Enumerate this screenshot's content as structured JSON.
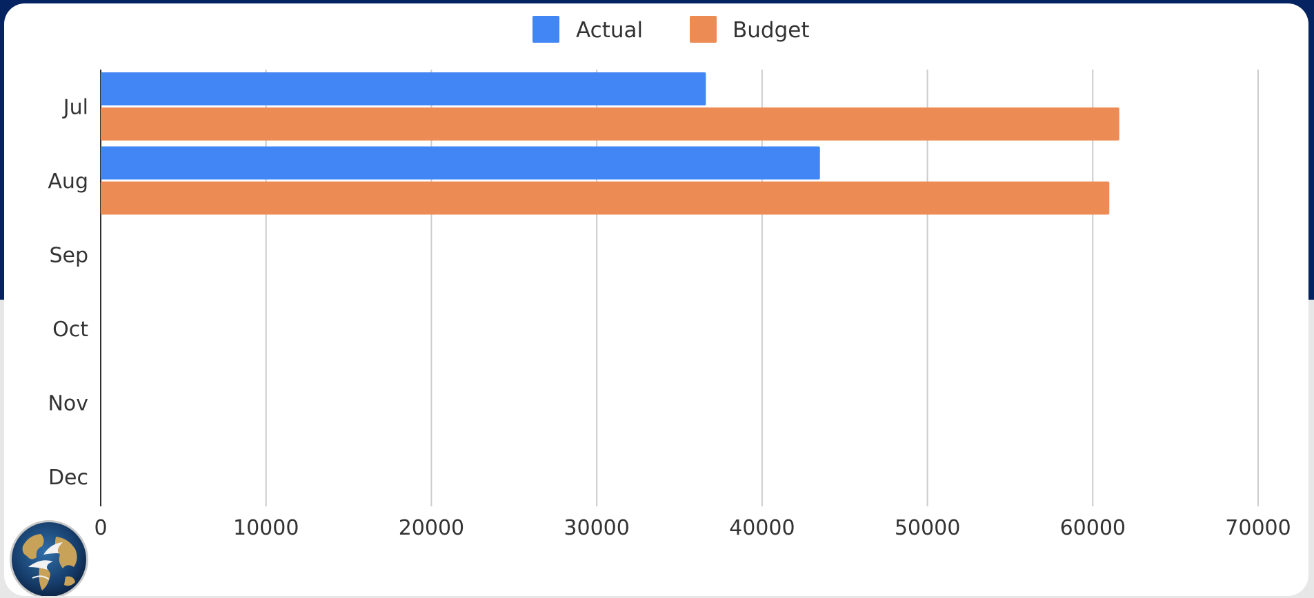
{
  "colors": {
    "page_background": "#e7e7e7",
    "header_band": "#052360",
    "card_background": "#ffffff",
    "gridline": "#cccccc",
    "axis_line": "#333333",
    "text": "#333333"
  },
  "logo": {
    "icon": "globe-with-doves-icon"
  },
  "chart_data": {
    "type": "bar",
    "orientation": "horizontal",
    "categories": [
      "Jul",
      "Aug",
      "Sep",
      "Oct",
      "Nov",
      "Dec"
    ],
    "series": [
      {
        "name": "Actual",
        "color": "#4285f4",
        "values": [
          36600,
          43500,
          null,
          null,
          null,
          null
        ]
      },
      {
        "name": "Budget",
        "color": "#ed8b55",
        "values": [
          61600,
          61000,
          null,
          null,
          null,
          null
        ]
      }
    ],
    "xlim": [
      0,
      70000
    ],
    "xticks": [
      "0",
      "10000",
      "20000",
      "30000",
      "40000",
      "50000",
      "60000",
      "70000"
    ],
    "legend_position": "top-center",
    "grid": true
  }
}
